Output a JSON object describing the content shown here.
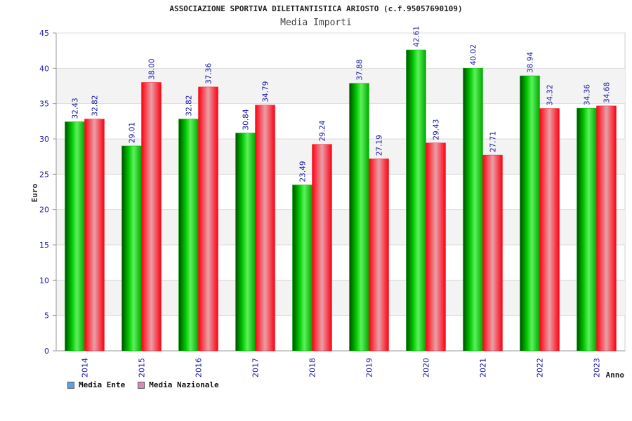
{
  "chart_data": {
    "type": "bar",
    "title": "ASSOCIAZIONE SPORTIVA DILETTANTISTICA ARIOSTO (c.f.95057690109)",
    "subtitle": "Media Importi",
    "xlabel": "Anno",
    "ylabel": "Euro",
    "ylim": [
      0,
      45
    ],
    "yticks": [
      0,
      5,
      10,
      15,
      20,
      25,
      30,
      35,
      40,
      45
    ],
    "grid": true,
    "legend_position": "bottom-left",
    "categories": [
      "2014",
      "2015",
      "2016",
      "2017",
      "2018",
      "2019",
      "2020",
      "2021",
      "2022",
      "2023"
    ],
    "series": [
      {
        "name": "Media Ente",
        "color": "#00b400",
        "legend_color": "#5aa0e6",
        "values": [
          32.43,
          29.01,
          32.82,
          30.84,
          23.49,
          37.88,
          42.61,
          40.02,
          38.94,
          34.36
        ]
      },
      {
        "name": "Media Nazionale",
        "color": "#f01e28",
        "legend_color": "#d78cb4",
        "values": [
          32.82,
          38.0,
          37.36,
          34.79,
          29.24,
          27.19,
          29.43,
          27.71,
          34.32,
          34.68
        ]
      }
    ]
  }
}
